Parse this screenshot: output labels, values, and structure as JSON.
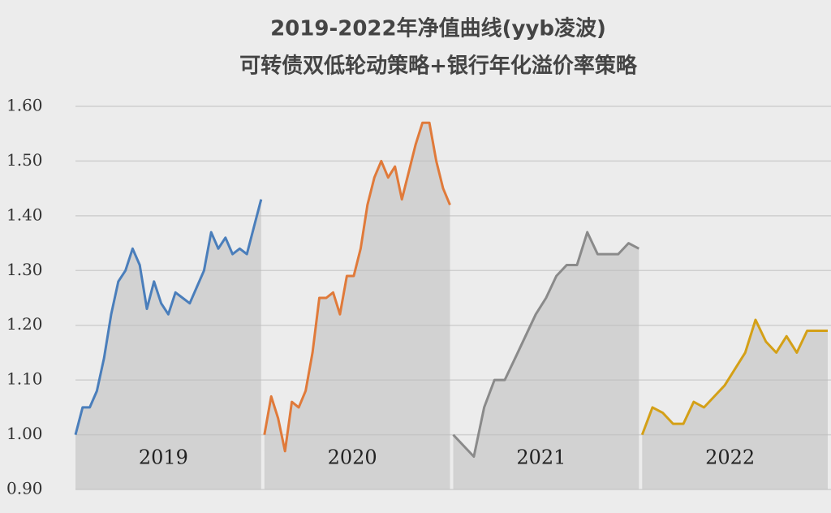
{
  "chart_data": {
    "type": "line",
    "title": "2019-2022年净值曲线(yyb凌波)",
    "subtitle": "可转债双低轮动策略+银行年化溢价率策略",
    "ylim": [
      0.9,
      1.6
    ],
    "yticks": [
      {
        "value": 0.9,
        "label": "0.90"
      },
      {
        "value": 1.0,
        "label": "1.00"
      },
      {
        "value": 1.1,
        "label": "1.10"
      },
      {
        "value": 1.2,
        "label": "1.20"
      },
      {
        "value": 1.3,
        "label": "1.30"
      },
      {
        "value": 1.4,
        "label": "1.40"
      },
      {
        "value": 1.5,
        "label": "1.50"
      },
      {
        "value": 1.6,
        "label": "1.60"
      }
    ],
    "grid": true,
    "area": true,
    "series": [
      {
        "name": "2019",
        "color": "#4a7ebb",
        "values": [
          1.0,
          1.05,
          1.05,
          1.08,
          1.14,
          1.22,
          1.28,
          1.3,
          1.34,
          1.31,
          1.23,
          1.28,
          1.24,
          1.22,
          1.26,
          1.25,
          1.24,
          1.27,
          1.3,
          1.37,
          1.34,
          1.36,
          1.33,
          1.34,
          1.33,
          1.38,
          1.43
        ]
      },
      {
        "name": "2020",
        "color": "#e07a3a",
        "values": [
          1.0,
          1.07,
          1.03,
          0.97,
          1.06,
          1.05,
          1.08,
          1.15,
          1.25,
          1.25,
          1.26,
          1.22,
          1.29,
          1.29,
          1.34,
          1.42,
          1.47,
          1.5,
          1.47,
          1.49,
          1.43,
          1.48,
          1.53,
          1.57,
          1.57,
          1.5,
          1.45,
          1.42
        ]
      },
      {
        "name": "2021",
        "color": "#8a8a8a",
        "values": [
          1.0,
          0.98,
          0.96,
          1.05,
          1.1,
          1.1,
          1.14,
          1.18,
          1.22,
          1.25,
          1.29,
          1.31,
          1.31,
          1.37,
          1.33,
          1.33,
          1.33,
          1.35,
          1.34
        ]
      },
      {
        "name": "2022",
        "color": "#d4a017",
        "values": [
          1.0,
          1.05,
          1.04,
          1.02,
          1.02,
          1.06,
          1.05,
          1.07,
          1.09,
          1.12,
          1.15,
          1.21,
          1.17,
          1.15,
          1.18,
          1.15,
          1.19,
          1.19,
          1.19
        ]
      }
    ]
  }
}
